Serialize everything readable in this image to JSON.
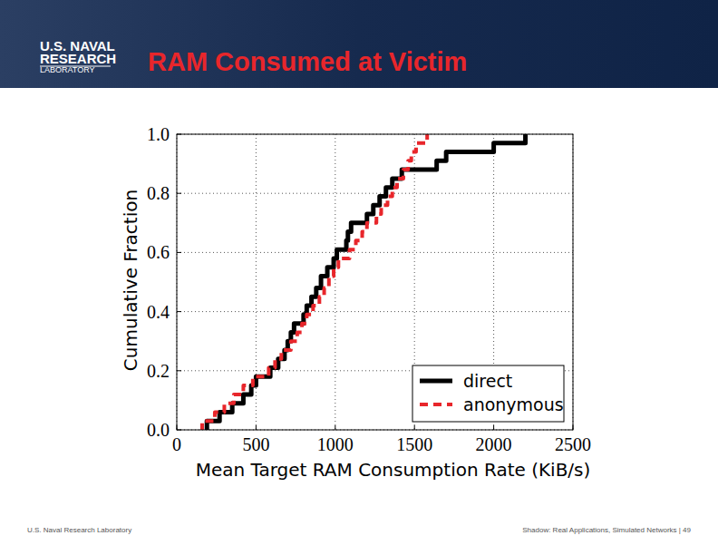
{
  "header": {
    "logo": [
      "U.S. NAVAL",
      "RESEARCH",
      "LABORATORY"
    ],
    "title": "RAM Consumed at Victim"
  },
  "footer": {
    "left": "U.S. Naval Research Laboratory",
    "right": "Shadow: Real Applications, Simulated Networks | 49"
  },
  "chart_data": {
    "type": "line",
    "xlabel": "Mean Target RAM Consumption Rate (KiB/s)",
    "ylabel": "Cumulative Fraction",
    "xlim": [
      0,
      2500
    ],
    "ylim": [
      0,
      1
    ],
    "xticks": [
      0,
      500,
      1000,
      1500,
      2000,
      2500
    ],
    "yticks": [
      {
        "value": 0,
        "label": "0.0"
      },
      {
        "value": 0.2,
        "label": "0.2"
      },
      {
        "value": 0.4,
        "label": "0.4"
      },
      {
        "value": 0.6,
        "label": "0.6"
      },
      {
        "value": 0.8,
        "label": "0.8"
      },
      {
        "value": 1,
        "label": "1.0"
      }
    ],
    "grid": true,
    "legend": "lower right",
    "series": [
      {
        "name": "direct",
        "color": "#000000",
        "line_style": "solid",
        "x": [
          180,
          190,
          270,
          350,
          420,
          470,
          500,
          590,
          640,
          680,
          700,
          720,
          740,
          800,
          820,
          850,
          880,
          910,
          950,
          990,
          1010,
          1070,
          1080,
          1100,
          1200,
          1240,
          1280,
          1320,
          1360,
          1420,
          1640,
          1700,
          2000,
          2200
        ],
        "values": [
          0,
          0.03,
          0.06,
          0.09,
          0.12,
          0.15,
          0.18,
          0.21,
          0.24,
          0.27,
          0.3,
          0.33,
          0.36,
          0.39,
          0.42,
          0.45,
          0.48,
          0.52,
          0.55,
          0.58,
          0.61,
          0.64,
          0.67,
          0.7,
          0.73,
          0.76,
          0.79,
          0.82,
          0.85,
          0.88,
          0.91,
          0.94,
          0.97,
          1.0
        ]
      },
      {
        "name": "anonymous",
        "color": "#e8262b",
        "line_style": "dashed",
        "x": [
          150,
          160,
          240,
          300,
          360,
          420,
          480,
          580,
          620,
          660,
          720,
          760,
          790,
          820,
          860,
          900,
          930,
          960,
          990,
          1020,
          1090,
          1130,
          1170,
          1200,
          1260,
          1290,
          1330,
          1360,
          1390,
          1430,
          1460,
          1480,
          1510,
          1580
        ],
        "values": [
          0,
          0.03,
          0.06,
          0.09,
          0.12,
          0.15,
          0.18,
          0.21,
          0.24,
          0.27,
          0.3,
          0.33,
          0.36,
          0.39,
          0.42,
          0.45,
          0.48,
          0.52,
          0.55,
          0.58,
          0.61,
          0.64,
          0.67,
          0.7,
          0.73,
          0.76,
          0.79,
          0.82,
          0.85,
          0.88,
          0.91,
          0.94,
          0.97,
          1.0
        ]
      }
    ]
  }
}
